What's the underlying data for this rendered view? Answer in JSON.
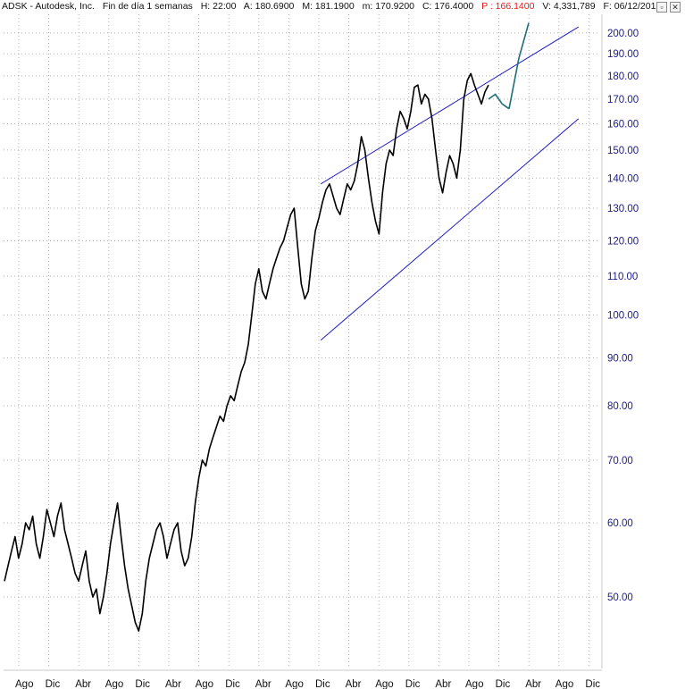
{
  "header": {
    "symbol": "ADSK - Autodesk, Inc.",
    "period": "Fin de día 1 semanas",
    "high_time": "H: 22:00",
    "open": "A: 180.6900",
    "max": "M: 181.1900",
    "min": "m: 170.9200",
    "close": "C: 176.4000",
    "price": "P : 166.1400",
    "volume": "V: 4,331,789",
    "date": "F: 06/12/201"
  },
  "window_buttons": {
    "maximize": "▫",
    "close": "✕"
  },
  "colors": {
    "background": "#ffffff",
    "price_line": "#000000",
    "channel": "#2020c8",
    "projection": "#1e6e78",
    "grid": "#b0b0b0",
    "axis_text": "#1a1a8c",
    "price_label": "#e81818"
  },
  "chart_data": {
    "type": "line",
    "title": "ADSK - Autodesk, Inc.",
    "scale": "log",
    "grid": true,
    "ylim": [
      42,
      200
    ],
    "y_ticks": [
      "50.00",
      "60.00",
      "70.00",
      "80.00",
      "90.00",
      "100.00",
      "110.00",
      "120.00",
      "130.00",
      "140.00",
      "150.00",
      "160.00",
      "170.00",
      "180.00",
      "190.00",
      "200.00"
    ],
    "x_ticks": [
      "Ago",
      "Dic",
      "Abr",
      "Ago",
      "Dic",
      "Abr",
      "Ago",
      "Dic",
      "Abr",
      "Ago",
      "Dic",
      "Abr",
      "Ago",
      "Dic",
      "Abr",
      "Ago",
      "Dic",
      "Abr",
      "Ago",
      "Dic"
    ],
    "series": [
      {
        "values": [
          52,
          54,
          56,
          58,
          55,
          57,
          60,
          59,
          61,
          57,
          55,
          58,
          62,
          60,
          58,
          61,
          63,
          59,
          57,
          55,
          53,
          52,
          54,
          56,
          52,
          50,
          51,
          48,
          50,
          53,
          57,
          60,
          63,
          58,
          54,
          51,
          49,
          47,
          46,
          48,
          52,
          55,
          57,
          59,
          60,
          58,
          55,
          57,
          59,
          60,
          56,
          54,
          55,
          58,
          63,
          67,
          70,
          69,
          72,
          74,
          76,
          78,
          77,
          80,
          82,
          81,
          84,
          87,
          89,
          93,
          100,
          108,
          112,
          106,
          104,
          108,
          112,
          115,
          118,
          120,
          124,
          128,
          130,
          118,
          108,
          104,
          106,
          115,
          123,
          127,
          132,
          136,
          138,
          134,
          130,
          128,
          133,
          138,
          136,
          139,
          145,
          155,
          150,
          140,
          132,
          126,
          122,
          135,
          145,
          150,
          148,
          158,
          165,
          162,
          158,
          165,
          175,
          176,
          168,
          172,
          170,
          162,
          150,
          140,
          135,
          142,
          148,
          145,
          140,
          150,
          170,
          178,
          181,
          176,
          172,
          168,
          173,
          176
        ]
      },
      {
        "values": [
          170,
          172,
          168,
          166
        ]
      },
      {
        "values": [
          166,
          188,
          205
        ]
      }
    ],
    "channel": {
      "upper": [
        [
          96,
          138
        ],
        [
          174,
          203
        ]
      ],
      "lower": [
        [
          96,
          94
        ],
        [
          174,
          162
        ]
      ]
    }
  }
}
